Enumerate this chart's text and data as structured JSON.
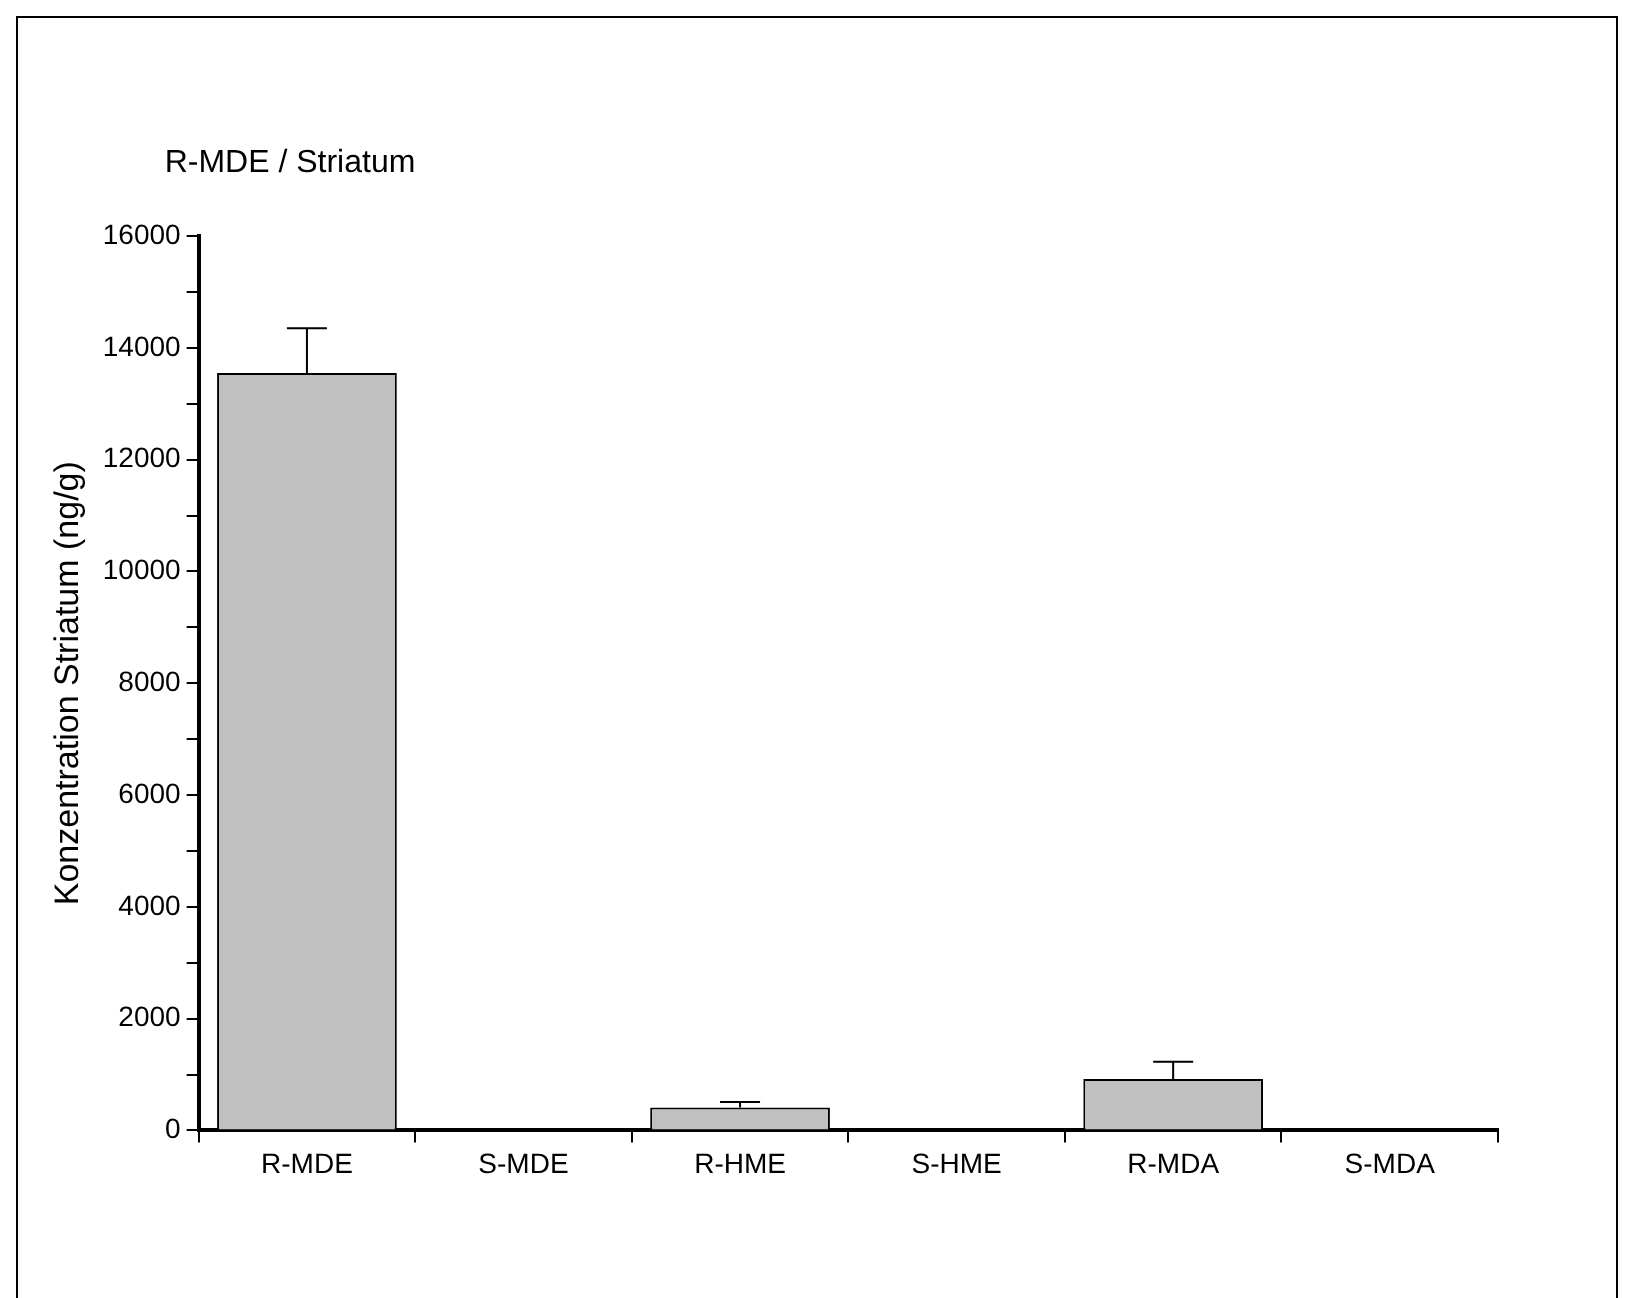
{
  "chart_data": {
    "type": "bar",
    "title": "R-MDE / Striatum",
    "ylabel": "Konzentration Striatum (ng/g)",
    "categories": [
      "R-MDE",
      "S-MDE",
      "R-HME",
      "S-HME",
      "R-MDA",
      "S-MDA"
    ],
    "values": [
      13550,
      0,
      410,
      0,
      920,
      0
    ],
    "color": "#c0c0c0",
    "errors": [
      [
        13550,
        14350
      ],
      null,
      [
        410,
        510
      ],
      null,
      [
        920,
        1230
      ],
      null
    ],
    "ylim": [
      0,
      16000
    ],
    "yticks": [
      0,
      {
        "value": 1000,
        "label": null
      },
      2000,
      {
        "value": 3000,
        "label": null
      },
      4000,
      {
        "value": 5000,
        "label": null
      },
      6000,
      {
        "value": 7000,
        "label": null
      },
      8000,
      {
        "value": 9000,
        "label": null
      },
      10000,
      {
        "value": 11000,
        "label": null
      },
      12000,
      {
        "value": 13000,
        "label": null
      },
      14000,
      {
        "value": 15000,
        "label": null
      },
      16000
    ],
    "grid": false,
    "legend": false
  }
}
